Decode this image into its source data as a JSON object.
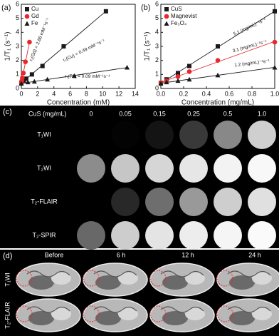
{
  "chart_data": [
    {
      "type": "scatter",
      "panel_label": "(a)",
      "xlabel": "Concentration (mM)",
      "ylabel": "1/T₁ (s⁻¹)",
      "xlim": [
        0,
        14
      ],
      "xticks": [
        0,
        2,
        4,
        6,
        8,
        10,
        12,
        14
      ],
      "ylim": [
        0,
        6
      ],
      "yticks": [
        0,
        1,
        2,
        3,
        4,
        5,
        6
      ],
      "legend": "upper left",
      "fit_lines": true,
      "series": [
        {
          "name": "Cu",
          "color": "#1a1a1a",
          "marker": "square",
          "x": [
            0,
            0.3,
            0.6,
            1.3,
            2.6,
            5.2,
            10.4
          ],
          "values": [
            0.4,
            0.55,
            0.7,
            1.0,
            1.6,
            3.0,
            5.5
          ]
        },
        {
          "name": "Gd",
          "color": "#e8262b",
          "marker": "circle",
          "x": [
            0,
            0.06,
            0.12,
            0.25,
            0.5,
            1.0
          ],
          "values": [
            0.4,
            0.55,
            0.75,
            1.1,
            1.9,
            3.3
          ]
        },
        {
          "name": "Fe",
          "color": "#1a1a1a",
          "marker": "triangle",
          "x": [
            0,
            0.8,
            1.6,
            3.2,
            6.5,
            13
          ],
          "values": [
            0.35,
            0.45,
            0.5,
            0.65,
            0.9,
            1.5
          ]
        }
      ],
      "annotations": [
        "r₁(Gd) = 2.86 mM⁻¹s⁻¹",
        "r₁(Cu) = 0.49 mM⁻¹s⁻¹",
        "r₁(Fe) = 0.09 mM⁻¹s⁻¹"
      ]
    },
    {
      "type": "scatter",
      "panel_label": "(b)",
      "xlabel": "Concentration (mg/mL)",
      "ylabel": "1/T₁ (s⁻¹)",
      "xlim": [
        0,
        1.0
      ],
      "xticks": [
        {
          "value": 0,
          "label": "0.0"
        },
        0.2,
        0.4,
        0.6,
        0.8,
        {
          "value": 1.0,
          "label": "1.0"
        }
      ],
      "ylim": [
        0,
        6
      ],
      "yticks": [
        0,
        1,
        2,
        3,
        4,
        5,
        6
      ],
      "legend": "upper left",
      "fit_lines": true,
      "series": [
        {
          "name": "CuS",
          "color": "#1a1a1a",
          "marker": "square",
          "x": [
            0,
            0.05,
            0.15,
            0.25,
            0.5,
            1.0
          ],
          "values": [
            0.4,
            0.65,
            1.1,
            1.6,
            3.0,
            5.5
          ]
        },
        {
          "name": "Magnevist",
          "color": "#e8262b",
          "marker": "circle",
          "x": [
            0,
            0.05,
            0.15,
            0.25,
            0.5,
            1.0
          ],
          "values": [
            0.4,
            0.55,
            0.85,
            1.2,
            2.0,
            3.3
          ]
        },
        {
          "name": "Fe₃O₄",
          "color": "#1a1a1a",
          "marker": "triangle",
          "x": [
            0,
            0.05,
            0.15,
            0.25,
            0.5,
            1.0
          ],
          "values": [
            0.35,
            0.45,
            0.55,
            0.65,
            0.95,
            1.5
          ]
        }
      ],
      "annotations": [
        "5.1 (mg/mL)⁻¹s⁻¹",
        "3.1 (mg/mL)⁻¹s⁻¹",
        "1.2 (mg/mL)⁻¹s⁻¹"
      ]
    }
  ],
  "panel_c": {
    "label": "(c)",
    "header": "CuS (mg/mL)",
    "columns": [
      "0",
      "0.05",
      "0.15",
      "0.25",
      "0.5",
      "1.0"
    ],
    "rows": [
      "T₁WI",
      "T₂WI",
      "T₂-FLAIR",
      "T₂-SPIR"
    ]
  },
  "panel_d": {
    "label": "(d)",
    "columns": [
      "Before",
      "6 h",
      "12 h",
      "24 h"
    ],
    "rows": [
      "T₁WI",
      "T₂-FLAIR"
    ]
  }
}
